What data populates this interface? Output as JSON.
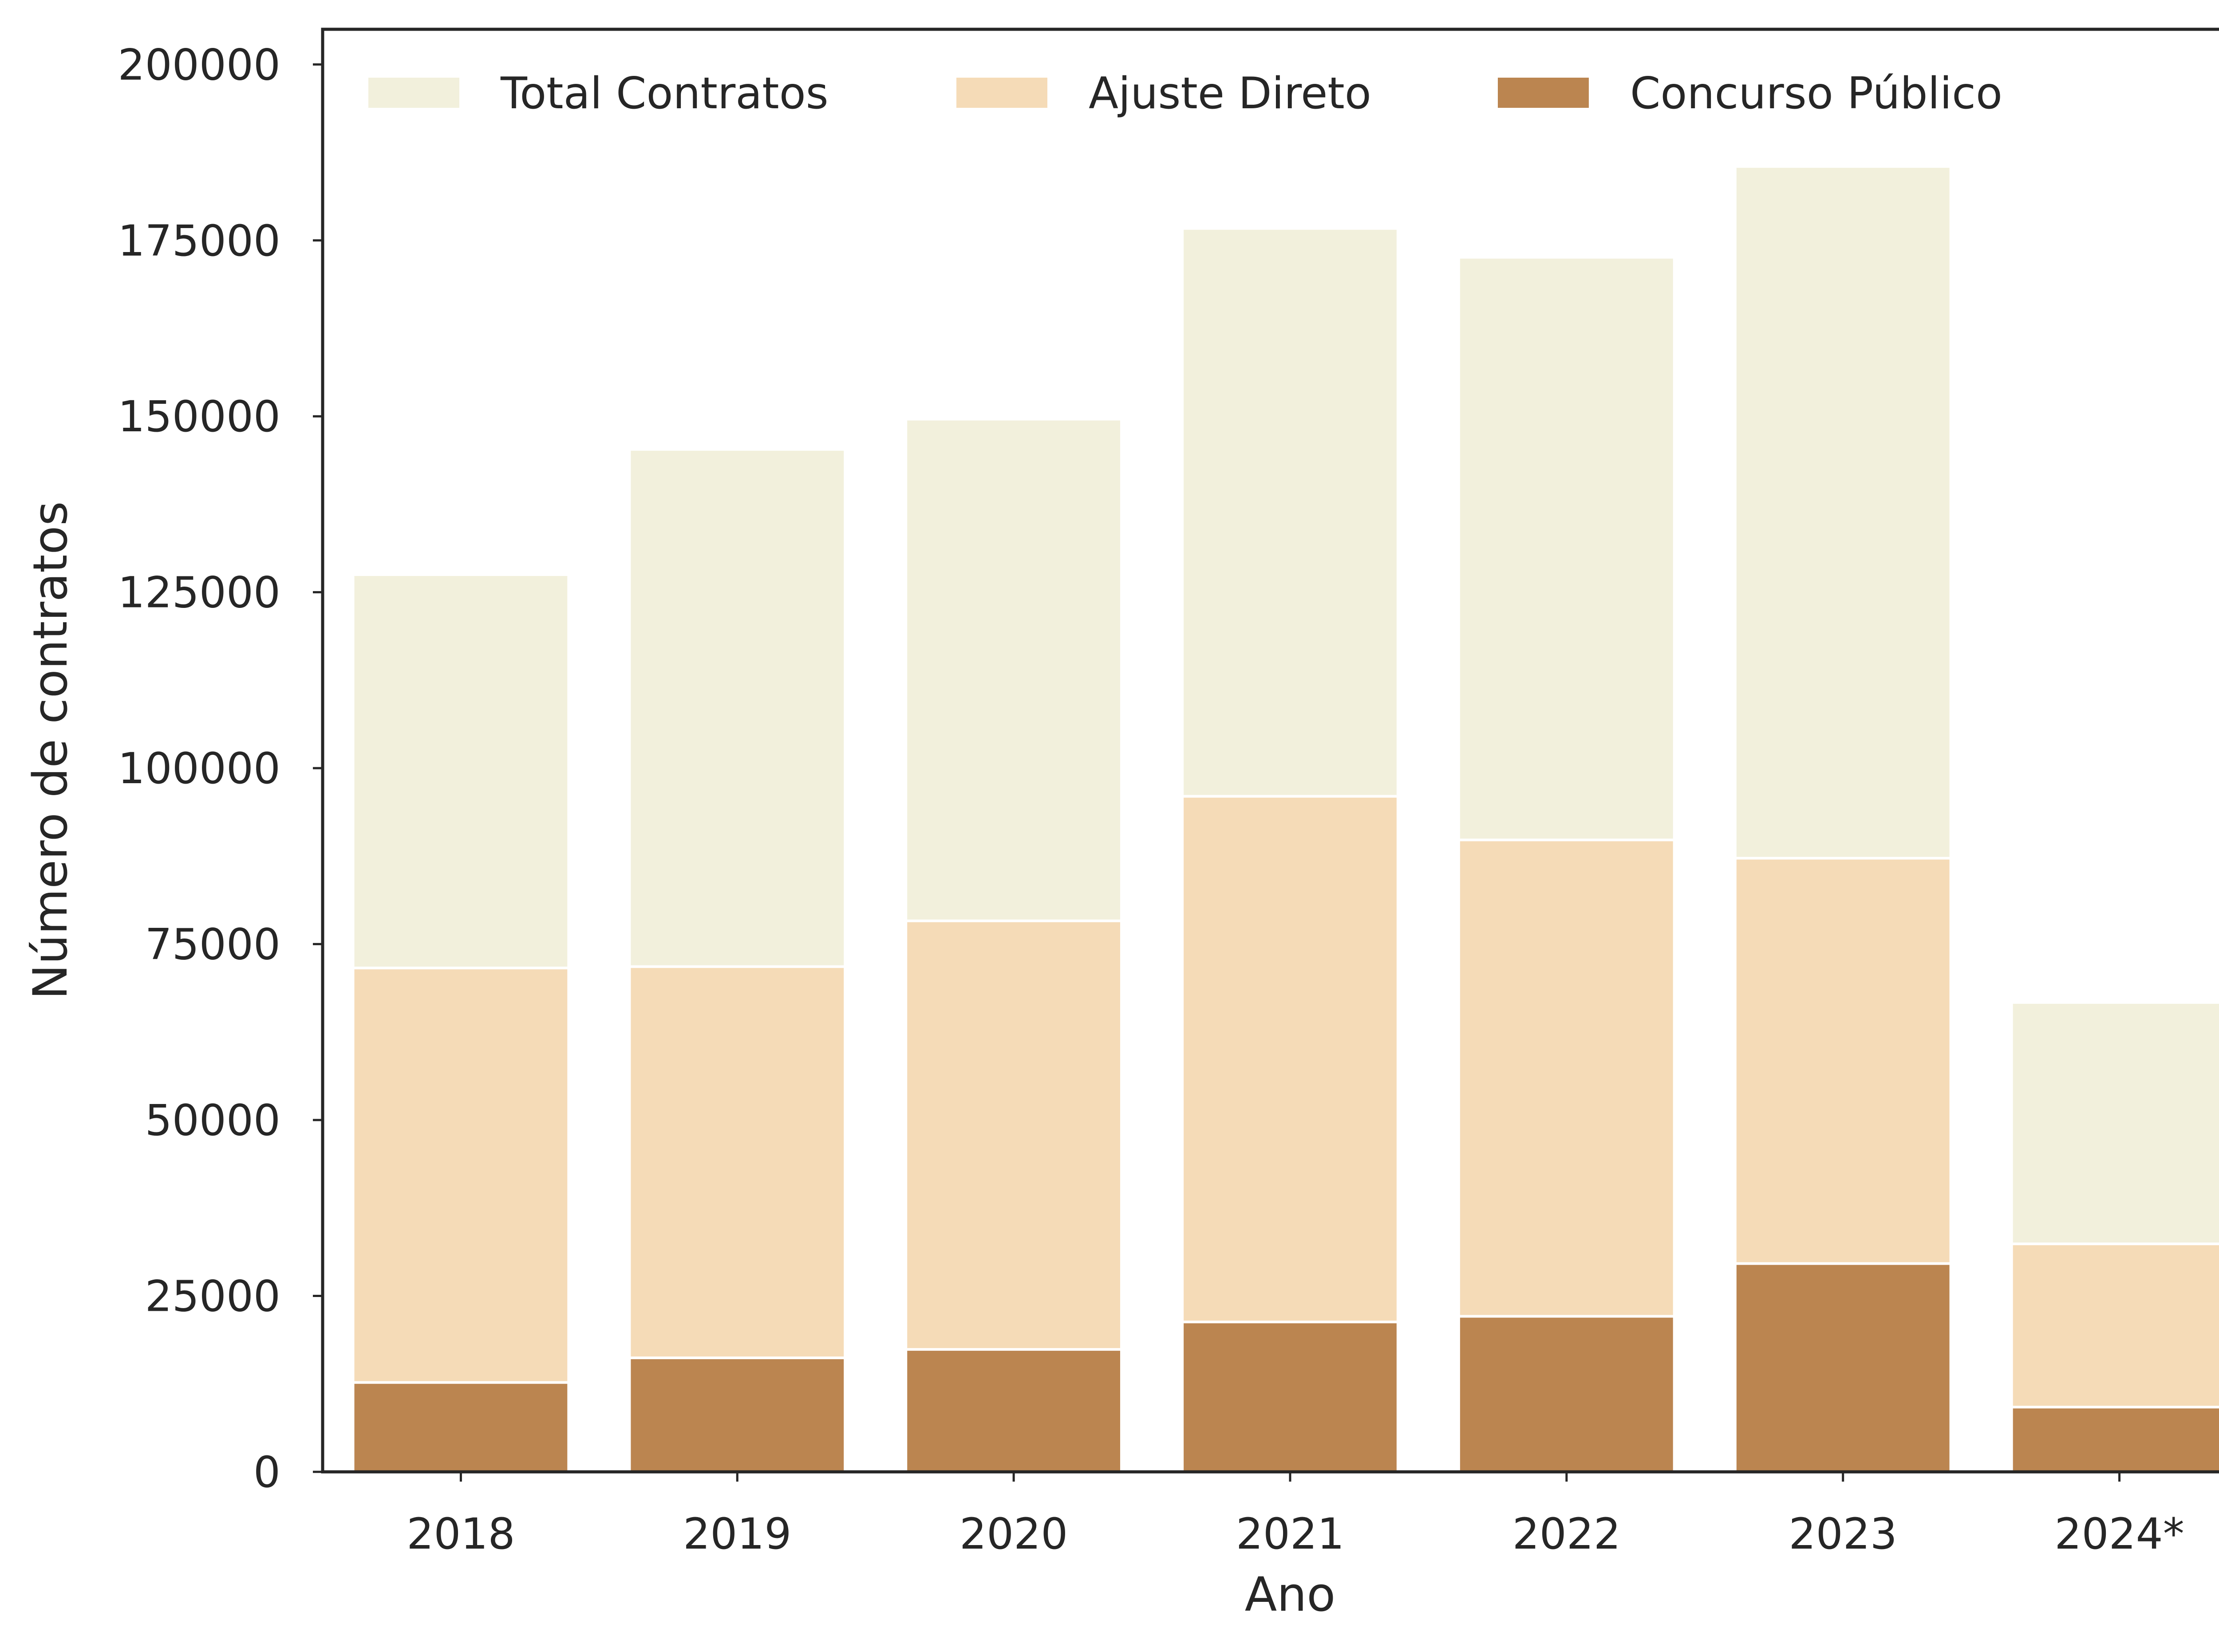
{
  "chart_data": {
    "type": "bar",
    "stacking": "overlay",
    "categories": [
      "2018",
      "2019",
      "2020",
      "2021",
      "2022",
      "2023",
      "2024*"
    ],
    "series": [
      {
        "name": "Total Contratos",
        "color": "#f2f0dc",
        "values": [
          127500,
          145300,
          149600,
          176700,
          172600,
          185500,
          66700
        ]
      },
      {
        "name": "Ajuste Direto",
        "color": "#f5dbb7",
        "values": [
          71600,
          71800,
          78300,
          96000,
          89800,
          87200,
          32400
        ]
      },
      {
        "name": "Concurso Público",
        "color": "#bb8550",
        "values": [
          12700,
          16200,
          17400,
          21300,
          22100,
          29600,
          9200
        ]
      }
    ],
    "xlabel": "Ano",
    "ylabel": "Número de contratos",
    "ylim": [
      0,
      205000
    ],
    "yticks": [
      0,
      25000,
      50000,
      75000,
      100000,
      125000,
      150000,
      175000,
      200000
    ],
    "legend_position": "top",
    "grid": false
  }
}
